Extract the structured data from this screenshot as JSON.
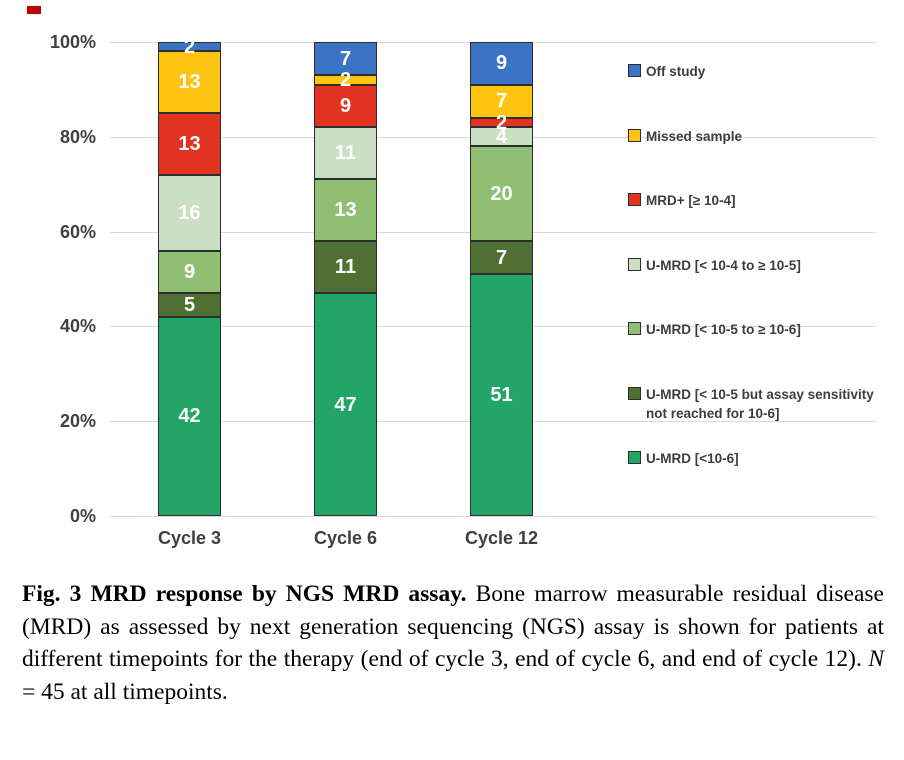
{
  "artifact": {
    "color": "#c00000"
  },
  "chart_data": {
    "type": "bar",
    "stacked": true,
    "categories": [
      "Cycle 3",
      "Cycle 6",
      "Cycle 12"
    ],
    "series": [
      {
        "name": "U-MRD [<10-6]",
        "color": "#22A567",
        "values": [
          42,
          47,
          51
        ]
      },
      {
        "name": "U-MRD [< 10-5 but assay sensitivity not reached for 10-6]",
        "color": "#4F7032",
        "values": [
          5,
          11,
          7
        ]
      },
      {
        "name": "U-MRD [< 10-5 to ≥ 10-6]",
        "color": "#90BF74",
        "values": [
          9,
          13,
          20
        ]
      },
      {
        "name": "U-MRD [< 10-4 to ≥ 10-5]",
        "color": "#CBDFC5",
        "values": [
          16,
          11,
          4
        ]
      },
      {
        "name": "MRD+ [≥ 10-4]",
        "color": "#E1331F",
        "values": [
          13,
          9,
          2
        ]
      },
      {
        "name": "Missed sample",
        "color": "#FDC412",
        "values": [
          13,
          2,
          7
        ]
      },
      {
        "name": "Off study",
        "color": "#3B74C4",
        "values": [
          2,
          7,
          9
        ]
      }
    ],
    "y_ticks": [
      "100%",
      "80%",
      "60%",
      "40%",
      "20%",
      "0%"
    ],
    "ylim": [
      0,
      100
    ],
    "grid": true,
    "legend_position": "right",
    "legend_order_top_to_bottom": [
      "Off study",
      "Missed sample",
      "MRD+ [≥ 10-4]",
      "U-MRD [< 10-4 to ≥ 10-5]",
      "U-MRD [< 10-5 to ≥ 10-6]",
      "U-MRD [< 10-5 but assay sensitivity not reached for 10-6]",
      "U-MRD [<10-6]"
    ],
    "bar_label_color": "#ffffff",
    "grid_color": "#d9d9d9",
    "axis_label_color": "#404040",
    "segment_border_color": "#2d2d2d"
  },
  "caption": {
    "bold": "Fig. 3 MRD response by NGS MRD assay.",
    "body": " Bone marrow measurable residual disease (MRD) as assessed by next generation sequencing (NGS) assay is shown for patients at different timepoints for the therapy (end of cycle 3, end of cycle 6, and end of cycle 12). ",
    "n_var": "N",
    "tail": " = 45 at all timepoints."
  }
}
